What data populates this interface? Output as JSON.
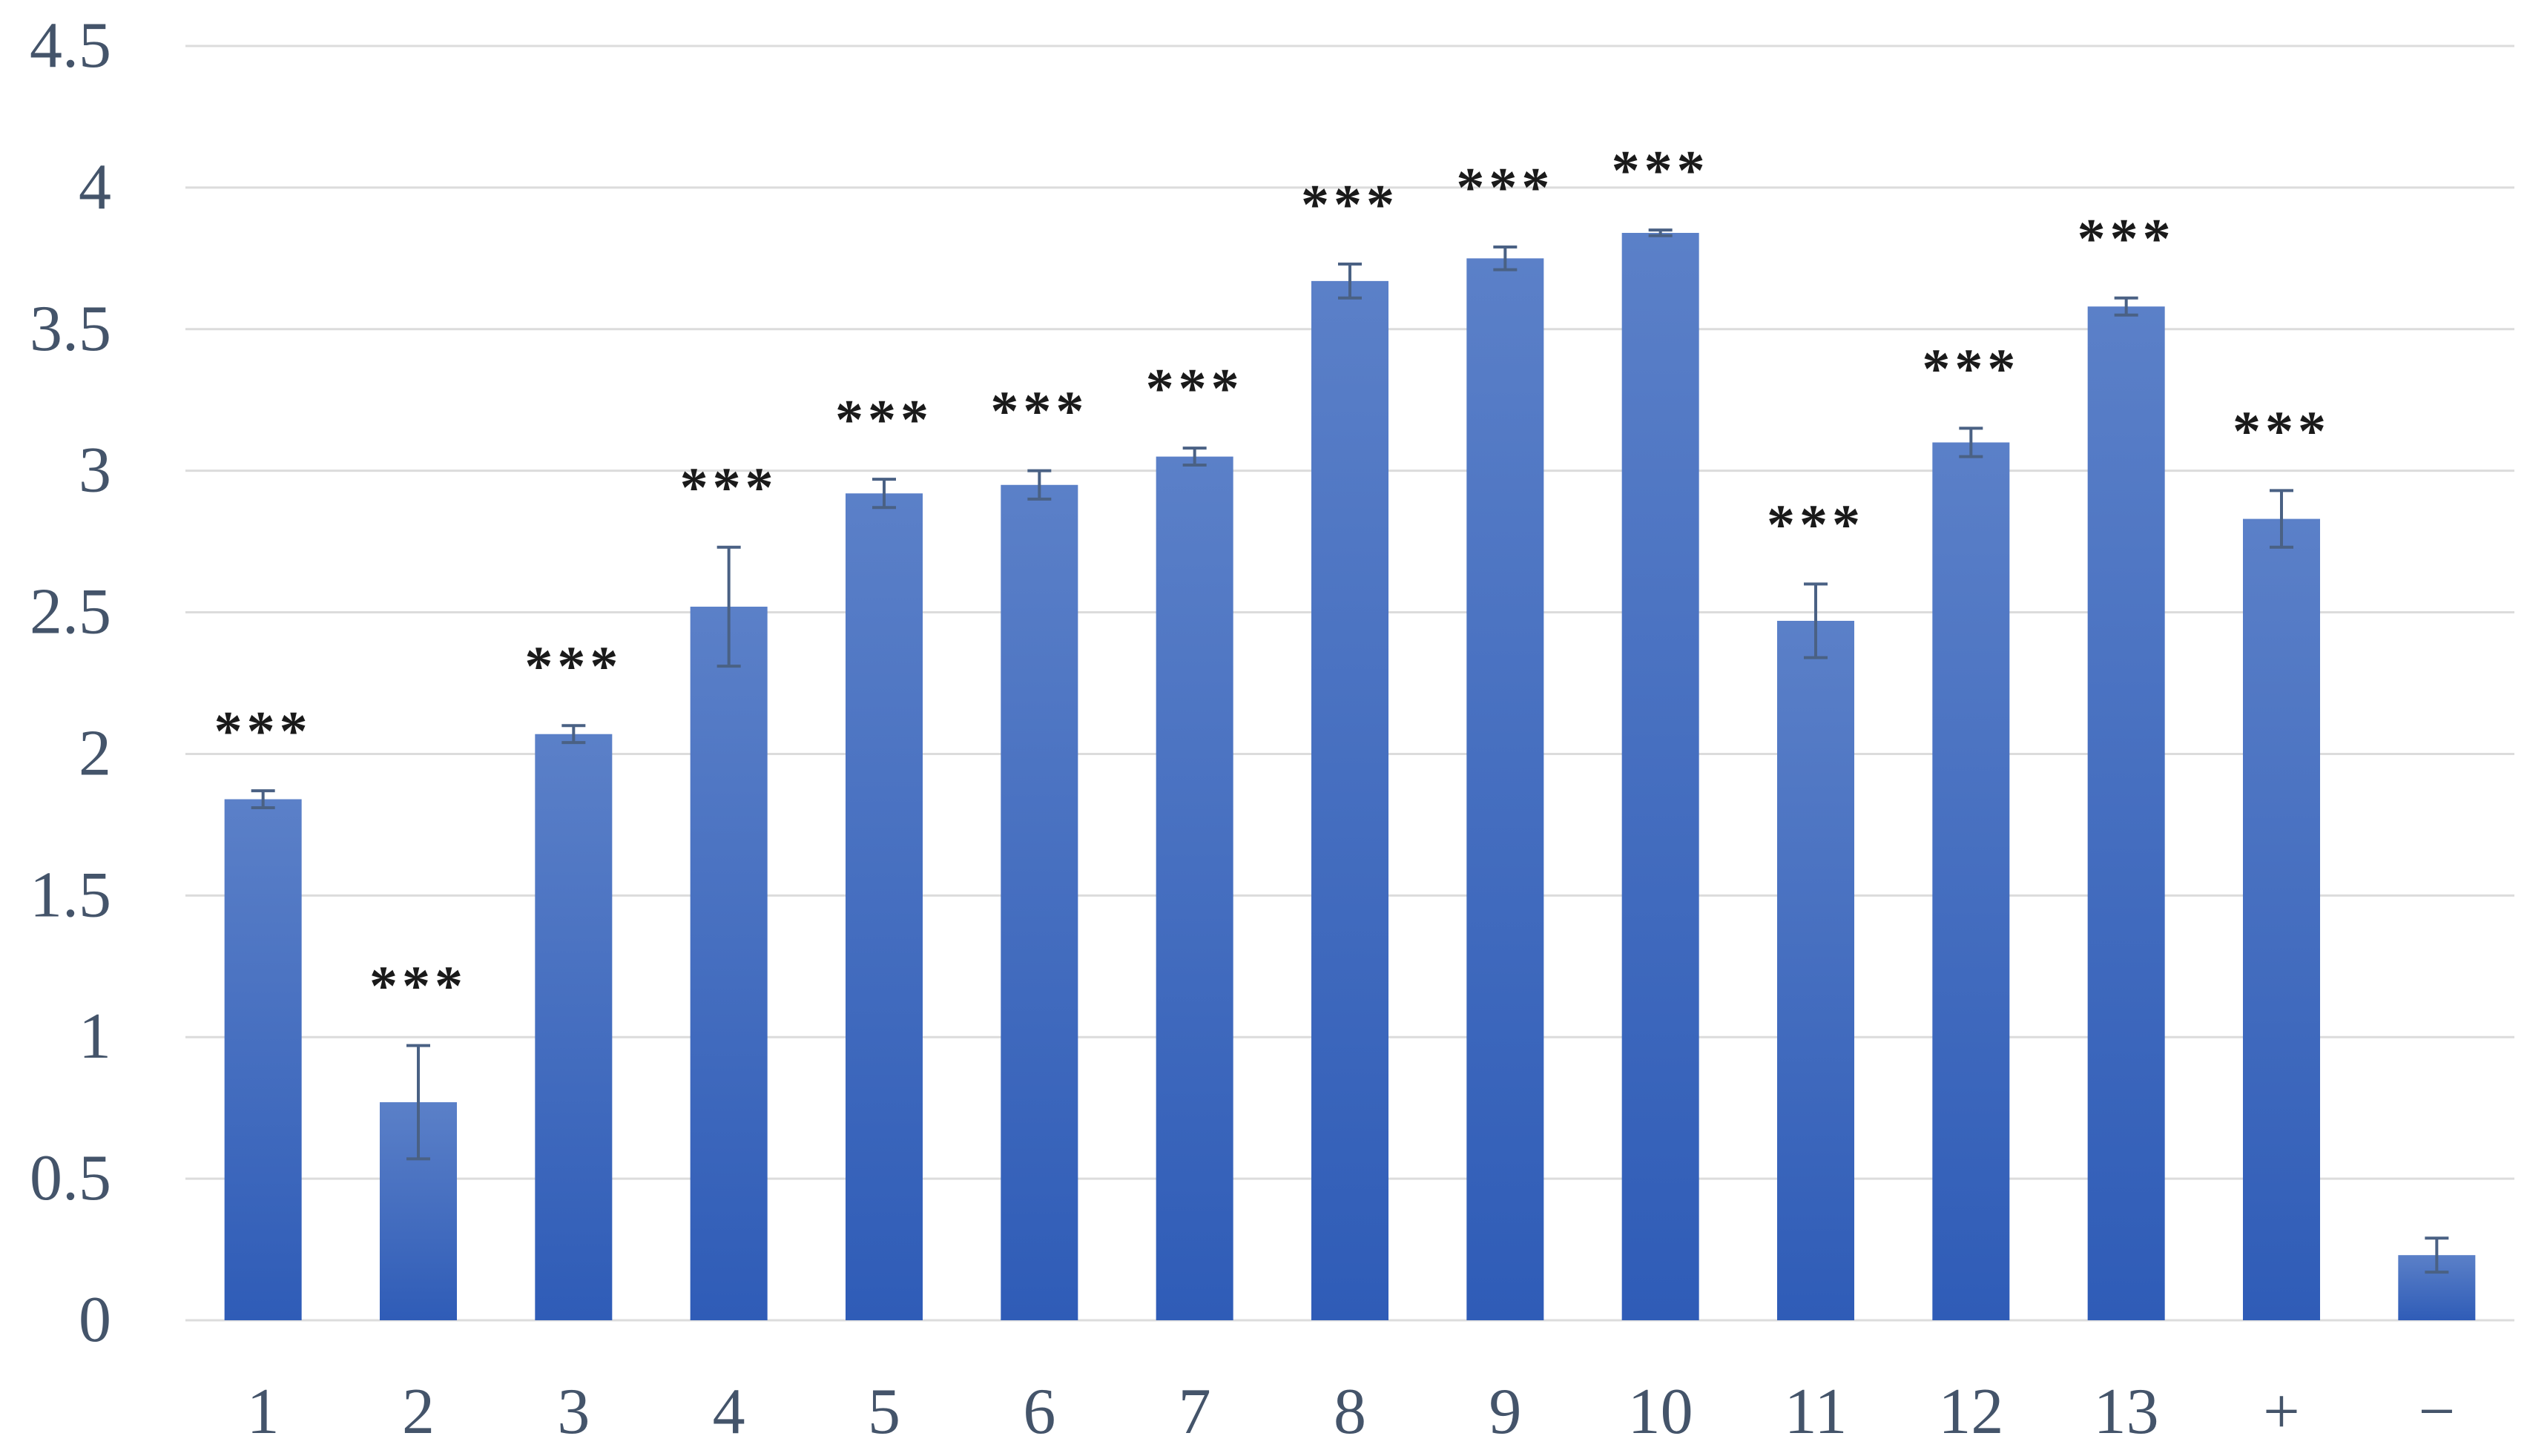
{
  "chart_data": {
    "type": "bar",
    "title": "",
    "xlabel": "",
    "ylabel": "",
    "categories": [
      "1",
      "2",
      "3",
      "4",
      "5",
      "6",
      "7",
      "8",
      "9",
      "10",
      "11",
      "12",
      "13",
      "+",
      "−"
    ],
    "values": [
      1.84,
      0.77,
      2.07,
      2.52,
      2.92,
      2.95,
      3.05,
      3.67,
      3.75,
      3.84,
      2.47,
      3.1,
      3.58,
      2.83,
      0.23
    ],
    "error": [
      0.03,
      0.2,
      0.03,
      0.21,
      0.05,
      0.05,
      0.03,
      0.06,
      0.04,
      0.01,
      0.13,
      0.05,
      0.03,
      0.1,
      0.06
    ],
    "annotations": [
      "***",
      "***",
      "***",
      "***",
      "***",
      "***",
      "***",
      "***",
      "***",
      "***",
      "***",
      "***",
      "***",
      "***",
      ""
    ],
    "ylim": [
      0,
      4.5
    ],
    "yticks": [
      "0",
      "0.5",
      "1",
      "1.5",
      "2",
      "2.5",
      "3",
      "3.5",
      "4",
      "4.5"
    ],
    "grid": true,
    "legend": "none",
    "colors": {
      "bar_top": "#5b80c8",
      "bar_bottom": "#2f5cb7",
      "error_bar": "#4a6184",
      "gridline": "#dcdcdc",
      "axis_text": "#44546a",
      "annotation_text": "#1a1a1a"
    }
  }
}
